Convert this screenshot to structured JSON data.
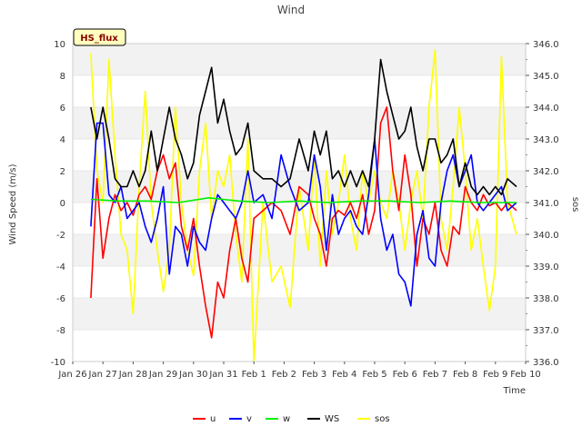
{
  "chart_data": {
    "type": "line",
    "title": "Wind",
    "xlabel": "Time",
    "ylabel": "Wind Speed (m/s)",
    "ylabel_right": "sos",
    "annotation": "HS_flux",
    "x_ticks": [
      "Jan 26",
      "Jan 27",
      "Jan 28",
      "Jan 29",
      "Jan 30",
      "Jan 31",
      "Feb 1",
      "Feb 2",
      "Feb 3",
      "Feb 4",
      "Feb 5",
      "Feb 6",
      "Feb 7",
      "Feb 8",
      "Feb 9",
      "Feb 10"
    ],
    "xlim": [
      0,
      15
    ],
    "ylim": [
      -10,
      10
    ],
    "y_ticks": [
      "-10",
      "-8",
      "-6",
      "-4",
      "-2",
      "0",
      "2",
      "4",
      "6",
      "8",
      "10"
    ],
    "ylim_right": [
      336.0,
      346.0
    ],
    "y_ticks_right": [
      "336.0",
      "337.0",
      "338.0",
      "339.0",
      "340.0",
      "341.0",
      "342.0",
      "343.0",
      "344.0",
      "345.0",
      "346.0"
    ],
    "grid": "horizontal bands",
    "legend_position": "bottom",
    "series": [
      {
        "name": "u",
        "color": "#ff0000",
        "axis": "left",
        "x": [
          0.6,
          0.8,
          1.0,
          1.2,
          1.4,
          1.6,
          1.8,
          2.0,
          2.2,
          2.4,
          2.6,
          2.8,
          3.0,
          3.2,
          3.4,
          3.6,
          3.8,
          4.0,
          4.2,
          4.4,
          4.6,
          4.8,
          5.0,
          5.2,
          5.4,
          5.6,
          5.8,
          6.0,
          6.3,
          6.6,
          6.9,
          7.2,
          7.5,
          7.8,
          8.0,
          8.2,
          8.4,
          8.6,
          8.8,
          9.0,
          9.2,
          9.4,
          9.6,
          9.8,
          10.0,
          10.2,
          10.4,
          10.6,
          10.8,
          11.0,
          11.2,
          11.4,
          11.6,
          11.8,
          12.0,
          12.2,
          12.4,
          12.6,
          12.8,
          13.0,
          13.2,
          13.4,
          13.6,
          13.8,
          14.0,
          14.2,
          14.4,
          14.7
        ],
        "values": [
          -6.0,
          1.5,
          -3.5,
          -1.0,
          0.5,
          -0.5,
          0.0,
          -0.8,
          0.5,
          1.0,
          0.2,
          2.0,
          3.0,
          1.5,
          2.5,
          -1.5,
          -3.0,
          -1.0,
          -4.0,
          -6.5,
          -8.5,
          -5.0,
          -6.0,
          -3.0,
          -1.0,
          -3.5,
          -5.0,
          -1.0,
          -0.5,
          0.0,
          -0.5,
          -2.0,
          1.0,
          0.5,
          -1.0,
          -2.0,
          -4.0,
          -1.0,
          -0.5,
          -0.8,
          0.0,
          -1.0,
          0.5,
          -2.0,
          -0.5,
          5.0,
          6.0,
          2.0,
          -0.5,
          3.0,
          0.5,
          -4.0,
          -1.0,
          -2.0,
          0.0,
          -3.0,
          -4.0,
          -1.5,
          -2.0,
          1.0,
          0.0,
          -0.5,
          0.5,
          -0.2,
          0.0,
          -0.5,
          0.0,
          -0.5
        ]
      },
      {
        "name": "v",
        "color": "#0000ff",
        "axis": "left",
        "x": [
          0.6,
          0.8,
          1.0,
          1.2,
          1.4,
          1.6,
          1.8,
          2.0,
          2.2,
          2.4,
          2.6,
          2.8,
          3.0,
          3.2,
          3.4,
          3.6,
          3.8,
          4.0,
          4.2,
          4.4,
          4.6,
          4.8,
          5.0,
          5.2,
          5.4,
          5.6,
          5.8,
          6.0,
          6.3,
          6.6,
          6.9,
          7.2,
          7.5,
          7.8,
          8.0,
          8.2,
          8.4,
          8.6,
          8.8,
          9.0,
          9.2,
          9.4,
          9.6,
          9.8,
          10.0,
          10.2,
          10.4,
          10.6,
          10.8,
          11.0,
          11.2,
          11.4,
          11.6,
          11.8,
          12.0,
          12.2,
          12.4,
          12.6,
          12.8,
          13.0,
          13.2,
          13.4,
          13.6,
          13.8,
          14.0,
          14.2,
          14.4,
          14.7
        ],
        "values": [
          -1.5,
          5.0,
          5.0,
          0.5,
          0.0,
          1.0,
          -1.0,
          -0.5,
          0.0,
          -1.5,
          -2.5,
          -1.0,
          1.0,
          -4.5,
          -1.5,
          -2.0,
          -4.0,
          -1.5,
          -2.5,
          -3.0,
          -1.0,
          0.5,
          0.0,
          -0.5,
          -1.0,
          0.0,
          2.0,
          0.0,
          0.5,
          -1.0,
          3.0,
          1.0,
          -0.5,
          0.0,
          3.0,
          1.0,
          -3.0,
          0.5,
          -2.0,
          -1.0,
          -0.5,
          -1.5,
          -2.0,
          0.5,
          4.0,
          -1.0,
          -3.0,
          -2.0,
          -4.5,
          -5.0,
          -6.5,
          -2.0,
          -0.5,
          -3.5,
          -4.0,
          0.0,
          2.0,
          3.0,
          1.0,
          2.0,
          3.0,
          0.0,
          -0.5,
          0.0,
          0.5,
          1.0,
          -0.5,
          0.0
        ]
      },
      {
        "name": "w",
        "color": "#00ee00",
        "axis": "left",
        "x": [
          0.6,
          1.5,
          2.5,
          3.5,
          4.5,
          5.5,
          6.5,
          7.5,
          8.5,
          9.5,
          10.5,
          11.5,
          12.5,
          13.5,
          14.7
        ],
        "values": [
          0.2,
          0.1,
          0.1,
          0.0,
          0.3,
          0.1,
          0.0,
          0.1,
          0.0,
          0.1,
          0.1,
          0.0,
          0.1,
          0.0,
          0.0
        ]
      },
      {
        "name": "WS",
        "color": "#000000",
        "axis": "left",
        "x": [
          0.6,
          0.8,
          1.0,
          1.2,
          1.4,
          1.6,
          1.8,
          2.0,
          2.2,
          2.4,
          2.6,
          2.8,
          3.0,
          3.2,
          3.4,
          3.6,
          3.8,
          4.0,
          4.2,
          4.4,
          4.6,
          4.8,
          5.0,
          5.2,
          5.4,
          5.6,
          5.8,
          6.0,
          6.3,
          6.6,
          6.9,
          7.2,
          7.5,
          7.8,
          8.0,
          8.2,
          8.4,
          8.6,
          8.8,
          9.0,
          9.2,
          9.4,
          9.6,
          9.8,
          10.0,
          10.2,
          10.4,
          10.6,
          10.8,
          11.0,
          11.2,
          11.4,
          11.6,
          11.8,
          12.0,
          12.2,
          12.4,
          12.6,
          12.8,
          13.0,
          13.2,
          13.4,
          13.6,
          13.8,
          14.0,
          14.2,
          14.4,
          14.7
        ],
        "values": [
          6.0,
          4.0,
          6.0,
          4.0,
          1.5,
          1.0,
          1.0,
          2.0,
          1.0,
          2.0,
          4.5,
          2.0,
          4.0,
          6.0,
          4.0,
          3.0,
          1.5,
          2.5,
          5.5,
          7.0,
          8.5,
          5.0,
          6.5,
          4.5,
          3.0,
          3.5,
          5.0,
          2.0,
          1.5,
          1.5,
          1.0,
          1.5,
          4.0,
          2.0,
          4.5,
          3.0,
          4.5,
          1.5,
          2.0,
          1.0,
          2.0,
          1.0,
          2.0,
          1.0,
          4.0,
          9.0,
          7.0,
          5.5,
          4.0,
          4.5,
          6.0,
          3.5,
          2.0,
          4.0,
          4.0,
          2.5,
          3.0,
          4.0,
          1.0,
          2.5,
          1.0,
          0.5,
          1.0,
          0.5,
          1.0,
          0.5,
          1.5,
          1.0
        ]
      },
      {
        "name": "sos",
        "color": "#ffff00",
        "axis": "right",
        "x": [
          0.6,
          0.8,
          1.0,
          1.2,
          1.4,
          1.6,
          1.8,
          2.0,
          2.2,
          2.4,
          2.6,
          2.8,
          3.0,
          3.2,
          3.4,
          3.6,
          3.8,
          4.0,
          4.2,
          4.4,
          4.6,
          4.8,
          5.0,
          5.2,
          5.4,
          5.6,
          5.8,
          6.0,
          6.3,
          6.6,
          6.9,
          7.2,
          7.5,
          7.8,
          8.0,
          8.2,
          8.4,
          8.6,
          8.8,
          9.0,
          9.2,
          9.4,
          9.6,
          9.8,
          10.0,
          10.2,
          10.4,
          10.6,
          10.8,
          11.0,
          11.2,
          11.4,
          11.6,
          11.8,
          12.0,
          12.2,
          12.4,
          12.6,
          12.8,
          13.0,
          13.2,
          13.4,
          13.6,
          13.8,
          14.0,
          14.2,
          14.4,
          14.7
        ],
        "values": [
          345.7,
          342.0,
          341.0,
          345.5,
          342.5,
          340.0,
          339.5,
          337.5,
          341.5,
          344.5,
          341.0,
          339.5,
          338.2,
          339.5,
          344.0,
          341.0,
          339.5,
          338.7,
          342.0,
          343.5,
          340.5,
          342.0,
          341.5,
          342.5,
          340.0,
          338.5,
          343.0,
          336.0,
          341.0,
          338.5,
          339.0,
          337.7,
          341.5,
          339.5,
          342.5,
          339.0,
          342.0,
          340.0,
          341.0,
          342.5,
          340.5,
          339.5,
          342.0,
          341.0,
          342.0,
          341.0,
          340.5,
          342.0,
          341.0,
          339.5,
          341.0,
          342.0,
          340.5,
          344.0,
          345.8,
          340.5,
          339.5,
          341.5,
          344.0,
          342.0,
          339.5,
          340.5,
          339.0,
          337.6,
          339.0,
          345.6,
          341.0,
          340.0
        ]
      }
    ]
  }
}
